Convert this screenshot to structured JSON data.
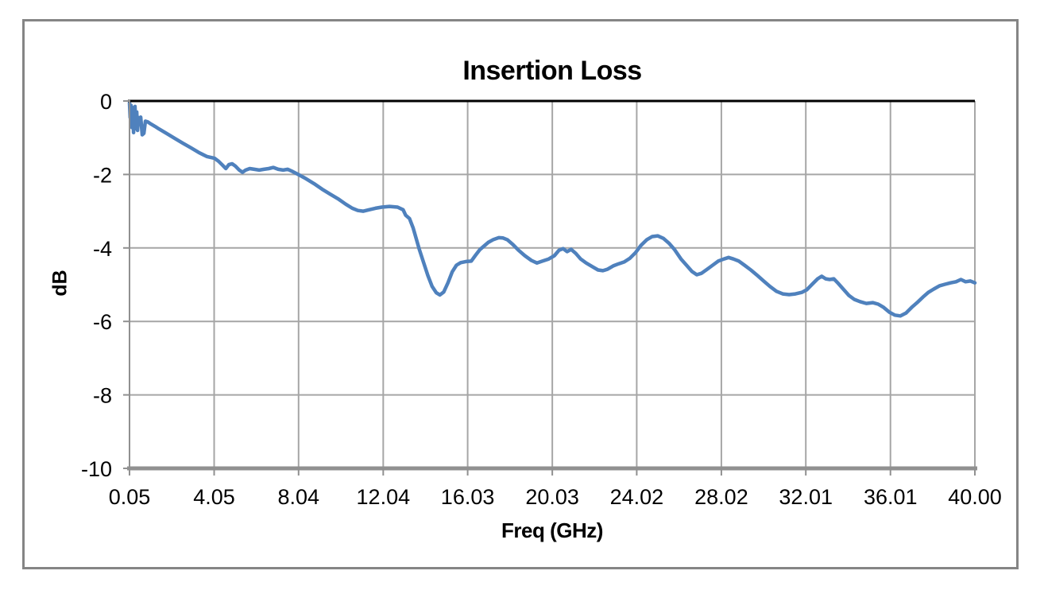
{
  "colors": {
    "line": "#4F81BD",
    "gridline": "#A6A6A6",
    "axis": "#909090",
    "zero_axis": "#000000",
    "frame_border": "#858585",
    "background": "#FFFFFF",
    "text": "#000000"
  },
  "chart_data": {
    "type": "line",
    "title": "Insertion Loss",
    "xlabel": "Freq (GHz)",
    "ylabel": "dB",
    "xlim": [
      0.05,
      40.0
    ],
    "ylim": [
      -10,
      0
    ],
    "grid": true,
    "legend": false,
    "x_ticks": {
      "values": [
        0.05,
        4.05,
        8.04,
        12.04,
        16.03,
        20.03,
        24.02,
        28.02,
        32.01,
        36.01,
        40.0
      ],
      "labels": [
        "0.05",
        "4.05",
        "8.04",
        "12.04",
        "16.03",
        "20.03",
        "24.02",
        "28.02",
        "32.01",
        "36.01",
        "40.00"
      ]
    },
    "y_ticks": {
      "values": [
        0,
        -2,
        -4,
        -6,
        -8,
        -10
      ],
      "labels": [
        "0",
        "-2",
        "-4",
        "-6",
        "-8",
        "-10"
      ]
    },
    "series": [
      {
        "name": "Insertion Loss",
        "color": "#4F81BD",
        "points": [
          [
            0.05,
            -0.05
          ],
          [
            0.08,
            -0.45
          ],
          [
            0.12,
            -0.12
          ],
          [
            0.16,
            -0.72
          ],
          [
            0.2,
            -0.18
          ],
          [
            0.24,
            -0.86
          ],
          [
            0.28,
            -0.25
          ],
          [
            0.31,
            -0.15
          ],
          [
            0.35,
            -0.75
          ],
          [
            0.39,
            -0.3
          ],
          [
            0.43,
            -0.8
          ],
          [
            0.47,
            -0.45
          ],
          [
            0.52,
            -0.5
          ],
          [
            0.58,
            -0.44
          ],
          [
            0.65,
            -0.92
          ],
          [
            0.73,
            -0.88
          ],
          [
            0.8,
            -0.55
          ],
          [
            0.91,
            -0.57
          ],
          [
            1.07,
            -0.63
          ],
          [
            1.25,
            -0.69
          ],
          [
            1.44,
            -0.76
          ],
          [
            1.82,
            -0.89
          ],
          [
            2.19,
            -1.02
          ],
          [
            2.57,
            -1.15
          ],
          [
            2.94,
            -1.27
          ],
          [
            3.32,
            -1.4
          ],
          [
            3.7,
            -1.51
          ],
          [
            4.07,
            -1.56
          ],
          [
            4.26,
            -1.64
          ],
          [
            4.45,
            -1.75
          ],
          [
            4.6,
            -1.84
          ],
          [
            4.75,
            -1.73
          ],
          [
            4.9,
            -1.71
          ],
          [
            5.05,
            -1.77
          ],
          [
            5.24,
            -1.88
          ],
          [
            5.39,
            -1.94
          ],
          [
            5.54,
            -1.88
          ],
          [
            5.73,
            -1.84
          ],
          [
            5.95,
            -1.86
          ],
          [
            6.18,
            -1.88
          ],
          [
            6.4,
            -1.86
          ],
          [
            6.63,
            -1.84
          ],
          [
            6.85,
            -1.81
          ],
          [
            7.08,
            -1.86
          ],
          [
            7.31,
            -1.88
          ],
          [
            7.53,
            -1.86
          ],
          [
            7.76,
            -1.92
          ],
          [
            8.06,
            -2.01
          ],
          [
            8.4,
            -2.12
          ],
          [
            8.77,
            -2.25
          ],
          [
            9.15,
            -2.4
          ],
          [
            9.52,
            -2.53
          ],
          [
            9.9,
            -2.66
          ],
          [
            10.27,
            -2.81
          ],
          [
            10.58,
            -2.92
          ],
          [
            10.84,
            -2.98
          ],
          [
            11.1,
            -3.0
          ],
          [
            11.37,
            -2.96
          ],
          [
            11.67,
            -2.92
          ],
          [
            11.97,
            -2.89
          ],
          [
            12.34,
            -2.87
          ],
          [
            12.72,
            -2.89
          ],
          [
            12.98,
            -2.96
          ],
          [
            13.1,
            -3.11
          ],
          [
            13.28,
            -3.2
          ],
          [
            13.45,
            -3.45
          ],
          [
            13.6,
            -3.75
          ],
          [
            13.75,
            -4.05
          ],
          [
            13.95,
            -4.4
          ],
          [
            14.15,
            -4.75
          ],
          [
            14.35,
            -5.05
          ],
          [
            14.55,
            -5.22
          ],
          [
            14.72,
            -5.28
          ],
          [
            14.9,
            -5.2
          ],
          [
            15.1,
            -4.95
          ],
          [
            15.3,
            -4.65
          ],
          [
            15.5,
            -4.47
          ],
          [
            15.7,
            -4.4
          ],
          [
            15.95,
            -4.37
          ],
          [
            16.2,
            -4.36
          ],
          [
            16.4,
            -4.2
          ],
          [
            16.6,
            -4.05
          ],
          [
            16.8,
            -3.95
          ],
          [
            17.0,
            -3.85
          ],
          [
            17.25,
            -3.77
          ],
          [
            17.5,
            -3.72
          ],
          [
            17.7,
            -3.73
          ],
          [
            17.91,
            -3.78
          ],
          [
            18.17,
            -3.91
          ],
          [
            18.43,
            -4.06
          ],
          [
            18.73,
            -4.21
          ],
          [
            19.04,
            -4.34
          ],
          [
            19.3,
            -4.41
          ],
          [
            19.56,
            -4.36
          ],
          [
            19.86,
            -4.3
          ],
          [
            20.13,
            -4.21
          ],
          [
            20.35,
            -4.06
          ],
          [
            20.54,
            -4.02
          ],
          [
            20.73,
            -4.1
          ],
          [
            20.92,
            -4.04
          ],
          [
            21.14,
            -4.15
          ],
          [
            21.37,
            -4.3
          ],
          [
            21.63,
            -4.41
          ],
          [
            21.93,
            -4.51
          ],
          [
            22.19,
            -4.6
          ],
          [
            22.42,
            -4.62
          ],
          [
            22.64,
            -4.58
          ],
          [
            22.91,
            -4.49
          ],
          [
            23.17,
            -4.43
          ],
          [
            23.43,
            -4.38
          ],
          [
            23.7,
            -4.28
          ],
          [
            23.96,
            -4.13
          ],
          [
            24.22,
            -3.93
          ],
          [
            24.49,
            -3.78
          ],
          [
            24.75,
            -3.69
          ],
          [
            25.01,
            -3.67
          ],
          [
            25.28,
            -3.74
          ],
          [
            25.54,
            -3.87
          ],
          [
            25.8,
            -4.04
          ],
          [
            26.11,
            -4.3
          ],
          [
            26.37,
            -4.47
          ],
          [
            26.63,
            -4.64
          ],
          [
            26.86,
            -4.73
          ],
          [
            27.08,
            -4.69
          ],
          [
            27.35,
            -4.58
          ],
          [
            27.61,
            -4.47
          ],
          [
            27.87,
            -4.36
          ],
          [
            28.14,
            -4.3
          ],
          [
            28.36,
            -4.26
          ],
          [
            28.59,
            -4.3
          ],
          [
            28.85,
            -4.36
          ],
          [
            29.11,
            -4.47
          ],
          [
            29.41,
            -4.6
          ],
          [
            29.72,
            -4.75
          ],
          [
            30.02,
            -4.9
          ],
          [
            30.32,
            -5.05
          ],
          [
            30.62,
            -5.18
          ],
          [
            30.92,
            -5.25
          ],
          [
            31.22,
            -5.27
          ],
          [
            31.52,
            -5.25
          ],
          [
            31.82,
            -5.21
          ],
          [
            32.05,
            -5.14
          ],
          [
            32.31,
            -4.99
          ],
          [
            32.57,
            -4.84
          ],
          [
            32.76,
            -4.77
          ],
          [
            32.95,
            -4.84
          ],
          [
            33.14,
            -4.86
          ],
          [
            33.33,
            -4.84
          ],
          [
            33.55,
            -4.97
          ],
          [
            33.78,
            -5.12
          ],
          [
            34.04,
            -5.29
          ],
          [
            34.3,
            -5.4
          ],
          [
            34.57,
            -5.46
          ],
          [
            34.87,
            -5.51
          ],
          [
            35.17,
            -5.49
          ],
          [
            35.43,
            -5.53
          ],
          [
            35.69,
            -5.62
          ],
          [
            35.96,
            -5.75
          ],
          [
            36.22,
            -5.83
          ],
          [
            36.48,
            -5.85
          ],
          [
            36.75,
            -5.77
          ],
          [
            37.01,
            -5.62
          ],
          [
            37.27,
            -5.49
          ],
          [
            37.54,
            -5.34
          ],
          [
            37.8,
            -5.21
          ],
          [
            38.06,
            -5.12
          ],
          [
            38.33,
            -5.03
          ],
          [
            38.59,
            -4.99
          ],
          [
            38.85,
            -4.95
          ],
          [
            39.11,
            -4.92
          ],
          [
            39.34,
            -4.86
          ],
          [
            39.56,
            -4.92
          ],
          [
            39.79,
            -4.9
          ],
          [
            40.0,
            -4.95
          ]
        ]
      }
    ]
  }
}
